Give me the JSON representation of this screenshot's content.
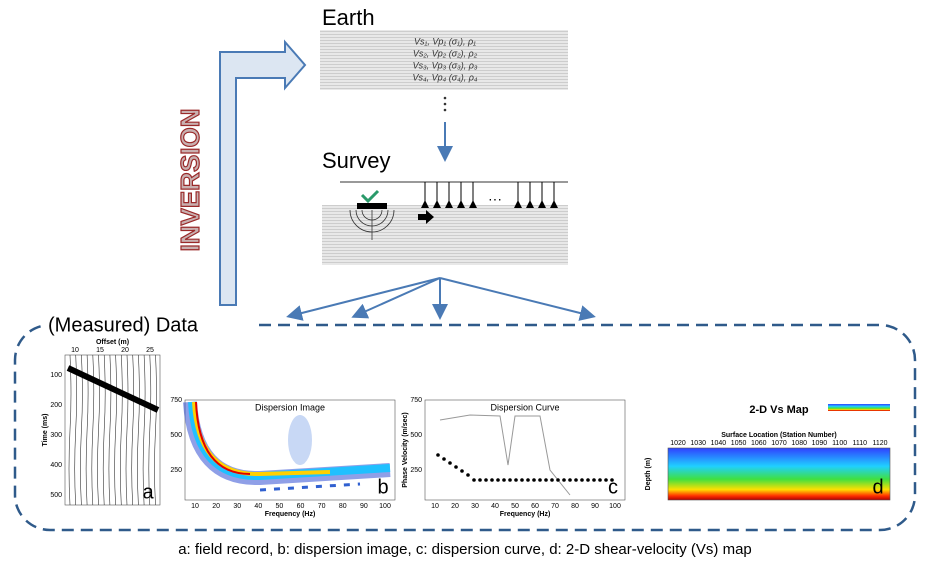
{
  "earth": {
    "title": "Earth",
    "layers": [
      "Vs₁, Vp₁ (σ₁), ρ₁",
      "Vs₂, Vp₂ (σ₂), ρ₂",
      "Vs₃, Vp₃ (σ₃), ρ₃",
      "Vs₄, Vp₄ (σ₄), ρ₄"
    ]
  },
  "survey": {
    "title": "Survey"
  },
  "inversion": {
    "label": "INVERSION"
  },
  "data": {
    "title": "(Measured) Data",
    "panels": [
      {
        "letter": "a",
        "x_label": "Offset (m)",
        "y_label": "Time (ms)",
        "x_ticks": [
          "10",
          "15",
          "20",
          "25"
        ],
        "y_ticks": [
          "100",
          "200",
          "300",
          "400",
          "500"
        ]
      },
      {
        "letter": "b",
        "title": "Dispersion Image",
        "x_label": "Frequency (Hz)",
        "x_ticks": [
          "10",
          "20",
          "30",
          "40",
          "50",
          "60",
          "70",
          "80",
          "90",
          "100"
        ],
        "y_ticks": [
          "750",
          "500",
          "250"
        ]
      },
      {
        "letter": "c",
        "title": "Dispersion Curve",
        "x_label": "Frequency (Hz)",
        "y_label": "Phase Velocity (m/sec)",
        "x_ticks": [
          "10",
          "20",
          "30",
          "40",
          "50",
          "60",
          "70",
          "80",
          "90",
          "100"
        ],
        "y_ticks": [
          "750",
          "500",
          "250"
        ]
      },
      {
        "letter": "d",
        "title": "2-D Vs Map",
        "x_label": "Surface Location (Station Number)",
        "y_label": "Depth (m)",
        "x_ticks": [
          "1020",
          "1030",
          "1040",
          "1050",
          "1060",
          "1070",
          "1080",
          "1090",
          "1100",
          "1110",
          "1120"
        ]
      }
    ]
  },
  "caption": "a: field record, b: dispersion image, c: dispersion curve, d: 2-D shear-velocity (Vs) map"
}
